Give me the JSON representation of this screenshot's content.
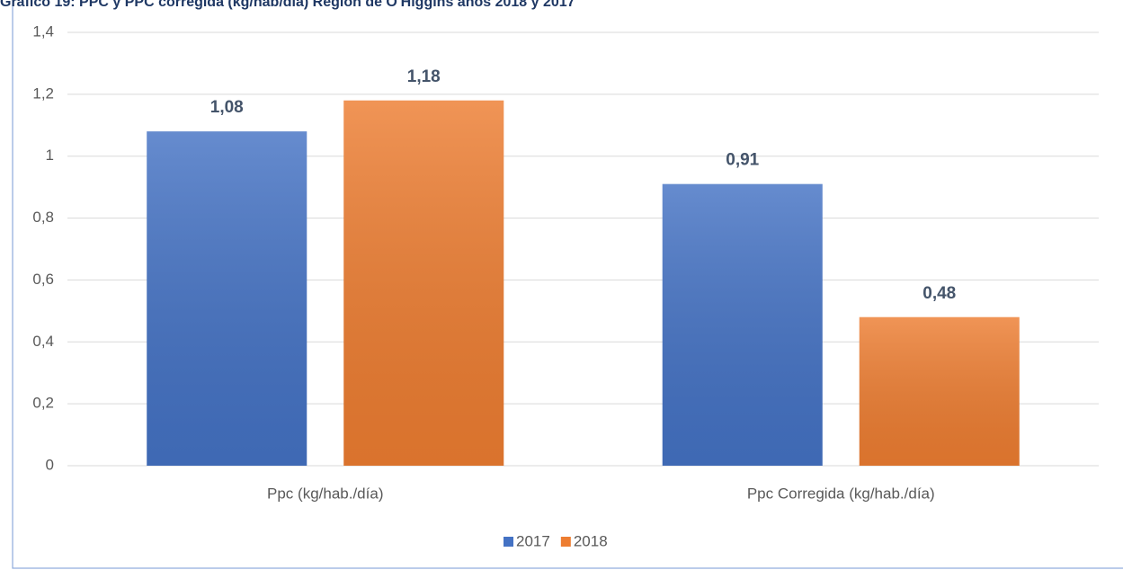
{
  "chart_data": {
    "type": "bar",
    "title": "Gráfico 19: PPC y PPC corregida (kg/hab/día) Región de O'Higgins años 2018 y 2017",
    "categories": [
      "Ppc (kg/hab./día)",
      "Ppc Corregida (kg/hab./día)"
    ],
    "series": [
      {
        "name": "2017",
        "color": "#4472c4",
        "values": [
          1.08,
          0.91
        ],
        "value_labels": [
          "1,08",
          "0,91"
        ]
      },
      {
        "name": "2018",
        "color": "#ed7d31",
        "values": [
          1.18,
          0.48
        ],
        "value_labels": [
          "1,18",
          "0,48"
        ]
      }
    ],
    "ylim": [
      0,
      1.4
    ],
    "yticks": [
      0,
      {
        "value": 0.2,
        "label": "0,2"
      },
      {
        "value": 0.4,
        "label": "0,4"
      },
      {
        "value": 0.6,
        "label": "0,6"
      },
      {
        "value": 0.8,
        "label": "0,8"
      },
      1,
      {
        "value": 1.2,
        "label": "1,2"
      },
      {
        "value": 1.4,
        "label": "1,4"
      }
    ],
    "grid": true,
    "legend": "bottom"
  }
}
